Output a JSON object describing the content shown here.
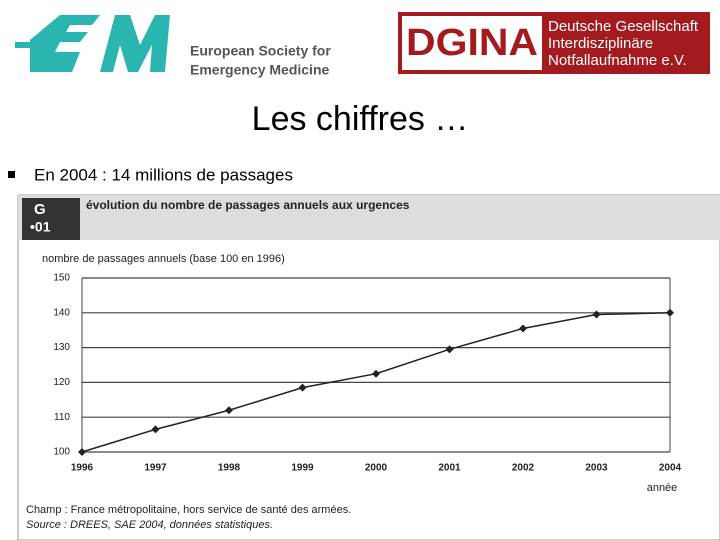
{
  "header": {
    "eusem_name": [
      "European Society for",
      "Emergency Medicine"
    ],
    "dgina": "DGINA",
    "dgina_name": [
      "Deutsche Gesellschaft",
      "Interdisziplinäre",
      "Notfallaufnahme e.V."
    ]
  },
  "slide": {
    "title": "Les chiffres …",
    "bullet": "En 2004 : 14 millions de passages"
  },
  "chart_data": {
    "type": "line",
    "badge": [
      "G",
      "•01"
    ],
    "title": "évolution du nombre de passages annuels aux urgences",
    "y_label": "nombre de passages annuels (base 100 en 1996)",
    "x_label": "année",
    "categories": [
      "1996",
      "1997",
      "1998",
      "1999",
      "2000",
      "2001",
      "2002",
      "2003",
      "2004"
    ],
    "values": [
      100,
      106.5,
      112,
      118.5,
      122.5,
      129.5,
      135.5,
      139.5,
      140
    ],
    "color": "#222222",
    "ylim": [
      100,
      150
    ],
    "yticks": [
      100,
      110,
      120,
      130,
      140,
      150
    ],
    "grid": true,
    "notes": [
      "Champ : France métropolitaine, hors service de santé des armées.",
      "Source : DREES, SAE 2004, données statistiques."
    ]
  }
}
